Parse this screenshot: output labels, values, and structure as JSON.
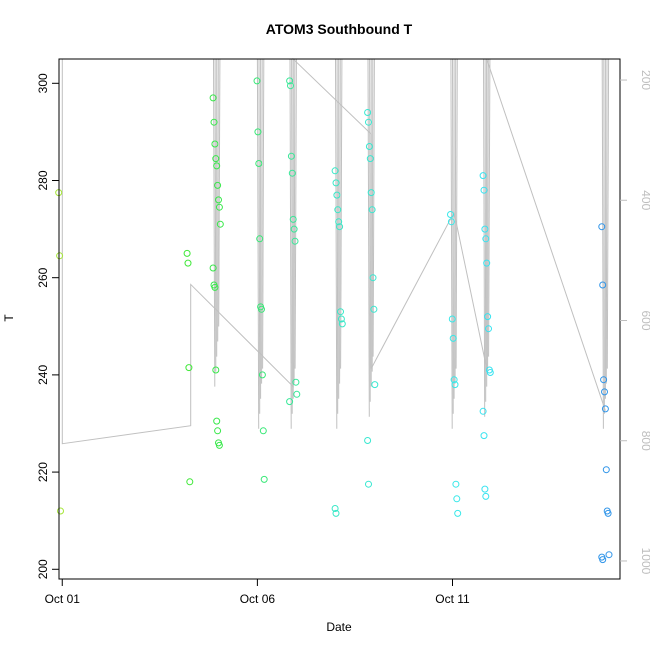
{
  "chart_data": {
    "type": "scatter",
    "title": "ATOM3 Southbound T",
    "xlabel": "Date",
    "ylabel": "T",
    "x_range_days": [
      "2023-09-30T22:00",
      "2023-10-15T07:00"
    ],
    "ylim": [
      198,
      305
    ],
    "y2lim": [
      1030,
      165
    ],
    "y2_reversed": true,
    "x_ticks": [
      {
        "date": "2023-10-01",
        "label": "Oct 01"
      },
      {
        "date": "2023-10-06",
        "label": "Oct 06"
      },
      {
        "date": "2023-10-11",
        "label": "Oct 11"
      }
    ],
    "y_ticks": [
      200,
      220,
      240,
      260,
      280,
      300
    ],
    "y2_ticks": [
      200,
      400,
      600,
      800,
      1000
    ],
    "colors": {
      "line": "#c0c0c0",
      "axis": "#000000",
      "right_axis": "#bebebe",
      "point_gradient": [
        "#a8e638",
        "#38e838",
        "#38e8c8",
        "#38e8f0",
        "#2f8be8"
      ]
    },
    "point_groups": [
      {
        "date": "2023-10-01T00:00",
        "T": [
          277.5,
          264.5,
          212.0
        ]
      },
      {
        "date": "2023-10-04T07:00",
        "T": [
          265.0,
          263.0,
          241.5,
          218.0
        ]
      },
      {
        "date": "2023-10-04T23:00",
        "T": [
          297.0,
          292.0,
          287.5,
          284.5,
          283.0,
          279.0,
          276.0,
          274.5,
          271.0,
          262.0,
          258.5,
          258.0,
          241.0,
          230.5,
          228.5,
          226.0,
          225.5
        ]
      },
      {
        "date": "2023-10-06T02:00",
        "T": [
          300.5,
          290.0,
          283.5,
          268.0,
          254.0,
          253.5,
          240.0,
          228.5,
          218.5
        ]
      },
      {
        "date": "2023-10-06T22:00",
        "T": [
          300.5,
          299.5,
          285.0,
          281.5,
          272.0,
          270.0,
          267.5,
          238.5,
          236.0,
          234.5
        ]
      },
      {
        "date": "2023-10-08T02:00",
        "T": [
          282.0,
          279.5,
          277.0,
          274.0,
          271.5,
          270.5,
          253.0,
          251.5,
          250.5,
          212.5,
          211.5
        ]
      },
      {
        "date": "2023-10-08T22:00",
        "T": [
          294.0,
          292.0,
          287.0,
          284.5,
          277.5,
          274.0,
          260.0,
          253.5,
          238.0,
          226.5,
          217.5
        ]
      },
      {
        "date": "2023-10-11T01:00",
        "T": [
          273.0,
          271.5,
          251.5,
          247.5,
          239.0,
          238.0,
          217.5,
          214.5,
          211.5
        ]
      },
      {
        "date": "2023-10-11T21:00",
        "T": [
          281.0,
          278.0,
          270.0,
          268.0,
          263.0,
          252.0,
          249.5,
          241.0,
          240.5,
          232.5,
          227.5,
          216.5,
          215.0
        ]
      },
      {
        "date": "2023-10-14T22:00",
        "T": [
          270.5,
          258.5,
          239.0,
          236.5,
          233.0,
          220.5,
          212.0,
          211.5,
          203.0,
          202.5,
          202.0
        ]
      }
    ],
    "profile_casts": [
      {
        "date": "2023-10-04T23:00",
        "y2_top": 165,
        "y2_bottom": 710
      },
      {
        "date": "2023-10-06T02:00",
        "y2_top": 165,
        "y2_bottom": 780
      },
      {
        "date": "2023-10-06T22:00",
        "y2_top": 165,
        "y2_bottom": 780
      },
      {
        "date": "2023-10-08T02:00",
        "y2_top": 165,
        "y2_bottom": 780
      },
      {
        "date": "2023-10-08T22:00",
        "y2_top": 165,
        "y2_bottom": 760
      },
      {
        "date": "2023-10-11T01:00",
        "y2_top": 165,
        "y2_bottom": 780
      },
      {
        "date": "2023-10-11T21:00",
        "y2_top": 165,
        "y2_bottom": 760
      },
      {
        "date": "2023-10-14T22:00",
        "y2_top": 165,
        "y2_bottom": 780
      }
    ],
    "track_line": [
      [
        "2023-10-01T00:00",
        165
      ],
      [
        "2023-10-01T00:00",
        805
      ],
      [
        "2023-10-04T07:00",
        775
      ],
      [
        "2023-10-04T07:00",
        540
      ],
      [
        "2023-10-06T22:00",
        710
      ],
      [
        "2023-10-06T22:00",
        165
      ],
      [
        "2023-10-08T22:00",
        290
      ],
      [
        "2023-10-08T22:00",
        680
      ],
      [
        "2023-10-11T01:00",
        420
      ],
      [
        "2023-10-11T21:00",
        680
      ],
      [
        "2023-10-11T21:00",
        165
      ],
      [
        "2023-10-14T22:00",
        750
      ]
    ]
  }
}
